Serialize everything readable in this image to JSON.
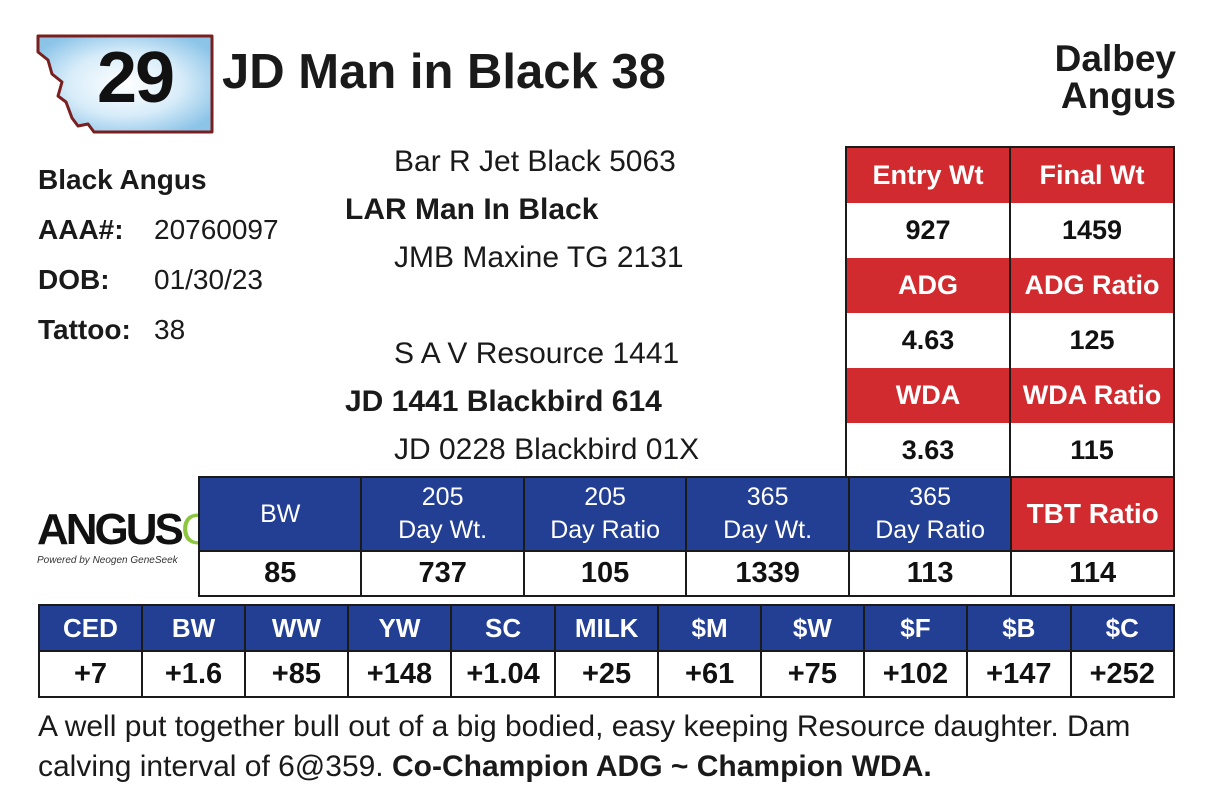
{
  "header": {
    "lot_number": "29",
    "bull_name": "JD Man in Black 38",
    "consignor_line1": "Dalbey",
    "consignor_line2": "Angus"
  },
  "info": {
    "breed": "Black Angus",
    "aaa_label": "AAA#:",
    "aaa_value": "20760097",
    "dob_label": "DOB:",
    "dob_value": "01/30/23",
    "tattoo_label": "Tattoo:",
    "tattoo_value": "38"
  },
  "pedigree": {
    "sire_sire": "Bar R Jet Black 5063",
    "sire": "LAR Man In Black",
    "sire_dam": "JMB Maxine TG 2131",
    "dam_sire": "S A V Resource 1441",
    "dam": "JD 1441 Blackbird 614",
    "dam_dam": "JD 0228 Blackbird 01X"
  },
  "performance": {
    "entry_wt_label": "Entry Wt",
    "entry_wt": "927",
    "final_wt_label": "Final Wt",
    "final_wt": "1459",
    "adg_label": "ADG",
    "adg": "4.63",
    "adg_ratio_label": "ADG Ratio",
    "adg_ratio": "125",
    "wda_label": "WDA",
    "wda": "3.63",
    "wda_ratio_label": "WDA Ratio",
    "wda_ratio": "115"
  },
  "weights": {
    "headers": [
      {
        "l1": "BW",
        "l2": ""
      },
      {
        "l1": "205",
        "l2": "Day Wt."
      },
      {
        "l1": "205",
        "l2": "Day Ratio"
      },
      {
        "l1": "365",
        "l2": "Day Wt."
      },
      {
        "l1": "365",
        "l2": "Day Ratio"
      }
    ],
    "tbt_label": "TBT Ratio",
    "values": [
      "85",
      "737",
      "105",
      "1339",
      "113",
      "114"
    ]
  },
  "epds": {
    "headers": [
      "CED",
      "BW",
      "WW",
      "YW",
      "SC",
      "MILK",
      "$M",
      "$W",
      "$F",
      "$B",
      "$C"
    ],
    "values": [
      "+7",
      "+1.6",
      "+85",
      "+148",
      "+1.04",
      "+25",
      "+61",
      "+75",
      "+102",
      "+147",
      "+252"
    ]
  },
  "logo": {
    "angus": "ANGUS",
    "gs": "GS",
    "tagline": "Powered by Neogen GeneSeek"
  },
  "comment": {
    "text": "A well put together bull out of a big bodied, easy keeping Resource daughter. Dam calving interval of 6@359.",
    "bold": "Co-Champion ADG ~ Champion WDA."
  },
  "colors": {
    "red": "#d12a2f",
    "blue": "#233f93",
    "badge_border": "#7a1f1f",
    "badge_fill": "#b9dcf2",
    "logo_green": "#8cc63f"
  }
}
